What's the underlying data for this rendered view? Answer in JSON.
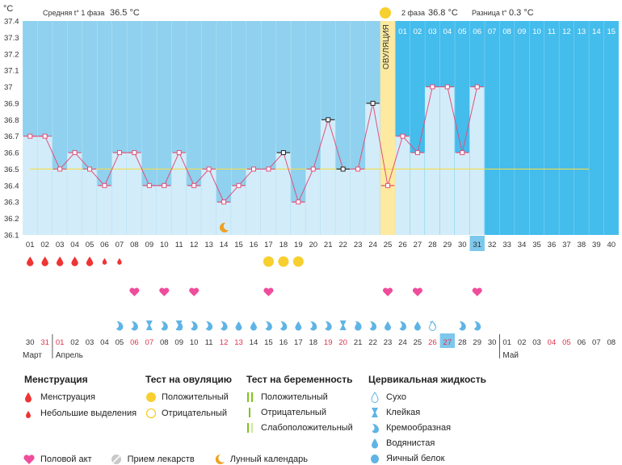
{
  "header": {
    "unit": "°C",
    "phase1_label": "Средняя t° 1 фаза",
    "phase1_value": "36.5 °C",
    "phase2_label": "2 фаза",
    "phase2_value": "36.8 °C",
    "diff_label": "Разница t°",
    "diff_value": "0.3 °C",
    "ovulation_label": "ОВУЛЯЦИЯ"
  },
  "colors": {
    "phase1_bg": "#8fd1ee",
    "phase2_bg": "#44bcec",
    "column_fill": "#d3ecf9",
    "ovulation_band": "#fde9a0",
    "line": "#e0507a",
    "coverline": "#f2dc4a",
    "menstruation": "#ef3434",
    "sex": "#ef4d9b",
    "test_positive": "#f7cf2e",
    "mucus": "#5fb4e5",
    "highlight_box": "#7cc8ec"
  },
  "chart_data": {
    "type": "line",
    "title": "",
    "ylabel": "°C",
    "ylim": [
      36.1,
      37.4
    ],
    "y_ticks": [
      "36.1",
      "36.2",
      "36.3",
      "36.4",
      "36.5",
      "36.6",
      "36.7",
      "36.8",
      "36.9",
      "37",
      "37.1",
      "37.2",
      "37.3",
      "37.4"
    ],
    "cycle_days": [
      "01",
      "02",
      "03",
      "04",
      "05",
      "06",
      "07",
      "08",
      "09",
      "10",
      "11",
      "12",
      "13",
      "14",
      "15",
      "16",
      "17",
      "18",
      "19",
      "20",
      "21",
      "22",
      "23",
      "24",
      "25",
      "26",
      "27",
      "28",
      "29",
      "30",
      "31",
      "32",
      "33",
      "34",
      "35",
      "36",
      "37",
      "38",
      "39",
      "40"
    ],
    "temperatures": [
      36.7,
      36.7,
      36.5,
      36.6,
      36.5,
      36.4,
      36.6,
      36.6,
      36.4,
      36.4,
      36.6,
      36.4,
      36.5,
      36.3,
      36.4,
      36.5,
      36.5,
      36.6,
      36.3,
      36.5,
      36.8,
      36.5,
      36.5,
      36.9,
      36.4,
      36.7,
      36.6,
      37.0,
      37.0,
      36.6,
      37.0
    ],
    "coverline": 36.5,
    "ovulation_day": 25,
    "current_day": 31,
    "black_markers_days": [
      18,
      21,
      22,
      24
    ],
    "phase2_top_labels": [
      "01",
      "02",
      "03",
      "04",
      "05",
      "06",
      "07",
      "08",
      "09",
      "10",
      "11",
      "12",
      "13",
      "14",
      "15"
    ],
    "calendar_dates": [
      "30",
      "31",
      "01",
      "02",
      "03",
      "04",
      "05",
      "06",
      "07",
      "08",
      "09",
      "10",
      "11",
      "12",
      "13",
      "14",
      "15",
      "16",
      "17",
      "18",
      "19",
      "20",
      "21",
      "22",
      "23",
      "24",
      "25",
      "26",
      "27",
      "28",
      "29",
      "30",
      "01",
      "02",
      "03",
      "04",
      "05",
      "06",
      "07",
      "08"
    ],
    "red_date_days": [
      2,
      3,
      8,
      9,
      14,
      15,
      21,
      22,
      28,
      29,
      36,
      37
    ],
    "highlighted_date_day": 29,
    "months": [
      "Март",
      "Апрель",
      "Май"
    ],
    "month_start_days": [
      1,
      3,
      33
    ],
    "menstruation": {
      "big": [
        1,
        2,
        3,
        4,
        5
      ],
      "small": [
        6,
        7
      ]
    },
    "ovulation_tests_positive": [
      17,
      18,
      19
    ],
    "sex_days": [
      8,
      10,
      12,
      17,
      25,
      27,
      31
    ],
    "moon_day": 14,
    "mucus": {
      "cream": [
        7,
        8,
        10,
        11,
        12,
        13,
        14,
        17,
        18,
        20,
        21,
        23,
        24,
        26,
        28,
        30,
        31
      ],
      "watery": [
        15,
        16,
        19,
        23,
        25,
        27,
        28
      ],
      "sticky": [
        9,
        11,
        22
      ],
      "dry": [
        28
      ]
    }
  },
  "legend": {
    "menstruation": {
      "title": "Менструация",
      "items": [
        "Менструация",
        "Небольшие выделения"
      ]
    },
    "ovulation_test": {
      "title": "Тест на овуляцию",
      "items": [
        "Положительный",
        "Отрицательный"
      ]
    },
    "pregnancy_test": {
      "title": "Тест на беременность",
      "items": [
        "Положительный",
        "Отрицательный",
        "Слабоположительный"
      ]
    },
    "cervical": {
      "title": "Цервикальная жидкость",
      "items": [
        "Сухо",
        "Клейкая",
        "Кремообразная",
        "Водянистая",
        "Яичный белок"
      ]
    },
    "bottom": [
      "Половой акт",
      "Прием лекарств",
      "Лунный календарь"
    ]
  }
}
